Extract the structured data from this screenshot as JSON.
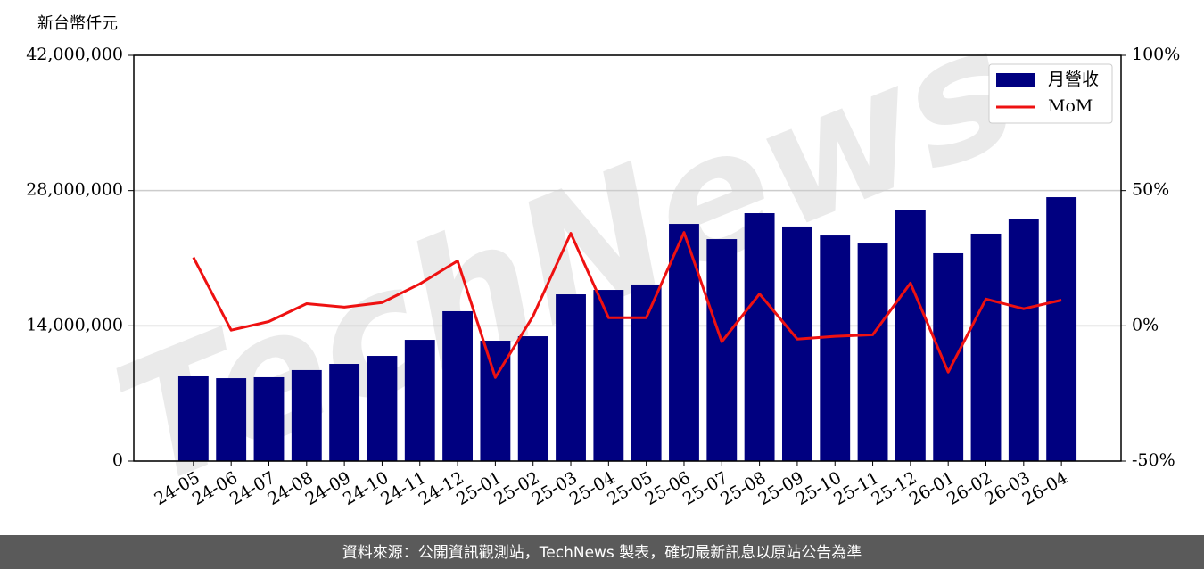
{
  "chart_data": {
    "type": "bar_line",
    "y_label": "新台幣仟元",
    "watermark": "TechNews",
    "footer": "資料來源：公開資訊觀測站，TechNews 製表，確切最新訊息以原站公告為準",
    "categories": [
      "24-05",
      "24-06",
      "24-07",
      "24-08",
      "24-09",
      "24-10",
      "24-11",
      "24-12",
      "25-01",
      "25-02",
      "25-03",
      "25-04",
      "25-05",
      "25-06",
      "25-07",
      "25-08",
      "25-09",
      "25-10",
      "25-11",
      "25-12",
      "26-01",
      "26-02",
      "26-03",
      "26-04"
    ],
    "series": [
      {
        "name": "月營收",
        "type": "bar",
        "color": "#000080",
        "values": [
          8770000,
          8580000,
          8680000,
          9420000,
          10060000,
          10890000,
          12550000,
          15510000,
          12460000,
          12920000,
          17260000,
          17720000,
          18280000,
          24550000,
          22980000,
          25660000,
          24280000,
          23350000,
          22520000,
          26030000,
          21510000,
          23540000,
          25020000,
          27320000
        ]
      },
      {
        "name": "MoM",
        "type": "line",
        "axis": "y2",
        "color": "#ee1111",
        "values": [
          25.3,
          -1.6,
          1.6,
          8.2,
          6.9,
          8.6,
          15.5,
          24.0,
          -19.1,
          3.6,
          34.2,
          3.0,
          3.0,
          34.5,
          -5.9,
          11.8,
          -4.9,
          -3.9,
          -3.3,
          15.8,
          -17.1,
          9.9,
          6.3,
          9.5
        ]
      }
    ],
    "ylim": [
      0,
      42000000
    ],
    "yticks": [
      {
        "value": 0,
        "label": "0"
      },
      {
        "value": 14000000,
        "label": "14,000,000"
      },
      {
        "value": 28000000,
        "label": "28,000,000"
      },
      {
        "value": 42000000,
        "label": "42,000,000"
      }
    ],
    "y2lim": [
      -50,
      100
    ],
    "y2ticks": [
      {
        "value": -50,
        "label": "-50%"
      },
      {
        "value": 0,
        "label": "0%"
      },
      {
        "value": 50,
        "label": "50%"
      },
      {
        "value": 100,
        "label": "100%"
      }
    ],
    "grid": true,
    "legend": "upper right"
  }
}
